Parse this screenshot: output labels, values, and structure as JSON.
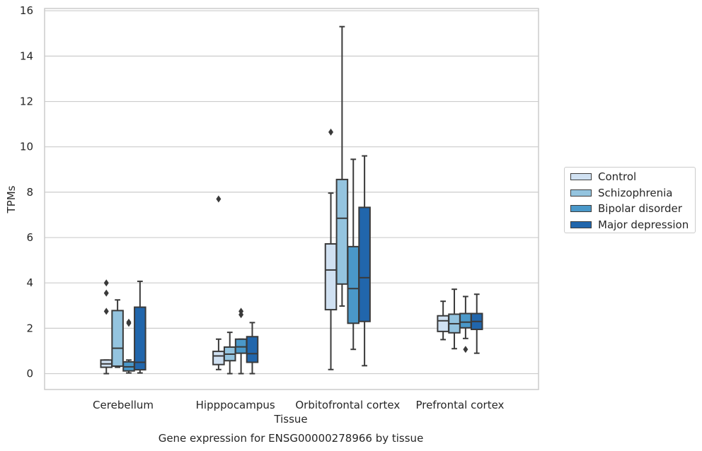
{
  "chart_data": {
    "type": "box",
    "xlabel": "Tissue",
    "ylabel": "TPMs",
    "caption": "Gene expression for ENSG00000278966 by tissue",
    "ylim": [
      -0.7,
      16.1
    ],
    "yticks": [
      0,
      2,
      4,
      6,
      8,
      10,
      12,
      14,
      16
    ],
    "ytick_labels": [
      "0",
      "2",
      "4",
      "6",
      "8",
      "10",
      "12",
      "14",
      "16"
    ],
    "grid": true,
    "legend_position": "right",
    "categories": [
      "Cerebellum",
      "Hipppocampus",
      "Orbitofrontal cortex",
      "Prefrontal cortex"
    ],
    "series": [
      {
        "name": "Control",
        "color": "#d0e1f2",
        "boxes": [
          {
            "min": 0.0,
            "q1": 0.28,
            "median": 0.43,
            "q3": 0.6,
            "max": 0.6,
            "outliers": [
              4.0,
              3.55,
              2.75
            ]
          },
          {
            "min": 0.18,
            "q1": 0.4,
            "median": 0.78,
            "q3": 0.98,
            "max": 1.52,
            "outliers": [
              7.7
            ]
          },
          {
            "min": 0.18,
            "q1": 2.82,
            "median": 4.57,
            "q3": 5.72,
            "max": 7.96,
            "outliers": [
              10.65
            ]
          },
          {
            "min": 1.5,
            "q1": 1.86,
            "median": 2.33,
            "q3": 2.55,
            "max": 3.19,
            "outliers": []
          }
        ]
      },
      {
        "name": "Schizophrenia",
        "color": "#94c4df",
        "boxes": [
          {
            "min": 0.28,
            "q1": 0.33,
            "median": 1.12,
            "q3": 2.78,
            "max": 3.25,
            "outliers": []
          },
          {
            "min": 0.0,
            "q1": 0.57,
            "median": 0.86,
            "q3": 1.17,
            "max": 1.82,
            "outliers": []
          },
          {
            "min": 2.98,
            "q1": 3.95,
            "median": 6.85,
            "q3": 8.56,
            "max": 15.3,
            "outliers": []
          },
          {
            "min": 1.1,
            "q1": 1.8,
            "median": 2.2,
            "q3": 2.62,
            "max": 3.72,
            "outliers": []
          }
        ]
      },
      {
        "name": "Bipolar disorder",
        "color": "#4a98c9",
        "boxes": [
          {
            "min": 0.03,
            "q1": 0.12,
            "median": 0.3,
            "q3": 0.52,
            "max": 0.6,
            "outliers": [
              2.27,
              2.22
            ]
          },
          {
            "min": 0.0,
            "q1": 0.9,
            "median": 1.18,
            "q3": 1.52,
            "max": 1.52,
            "outliers": [
              2.75,
              2.6
            ]
          },
          {
            "min": 1.07,
            "q1": 2.22,
            "median": 3.75,
            "q3": 5.6,
            "max": 9.45,
            "outliers": []
          },
          {
            "min": 1.55,
            "q1": 2.02,
            "median": 2.27,
            "q3": 2.65,
            "max": 3.4,
            "outliers": [
              1.07
            ]
          }
        ]
      },
      {
        "name": "Major depression",
        "color": "#2166ac",
        "boxes": [
          {
            "min": 0.03,
            "q1": 0.17,
            "median": 0.5,
            "q3": 2.93,
            "max": 4.07,
            "outliers": []
          },
          {
            "min": 0.0,
            "q1": 0.5,
            "median": 0.88,
            "q3": 1.63,
            "max": 2.25,
            "outliers": []
          },
          {
            "min": 0.35,
            "q1": 2.3,
            "median": 4.23,
            "q3": 7.33,
            "max": 9.6,
            "outliers": []
          },
          {
            "min": 0.9,
            "q1": 1.95,
            "median": 2.3,
            "q3": 2.65,
            "max": 3.5,
            "outliers": []
          }
        ]
      }
    ]
  }
}
